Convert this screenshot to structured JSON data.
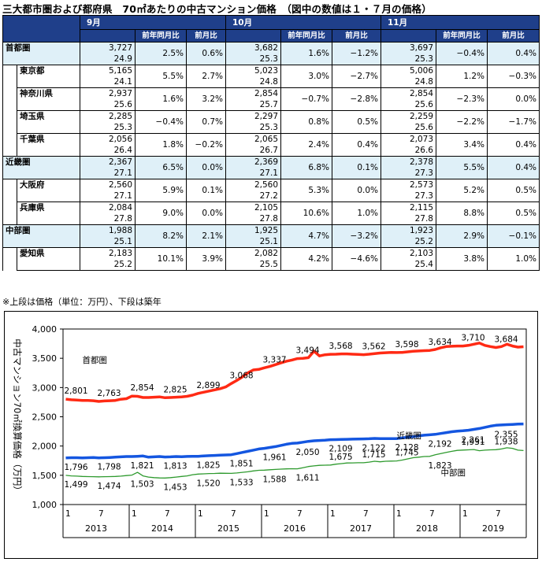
{
  "title": "三大都市圏および都府県　70㎡あたりの中古マンション価格　（図中の数値は１・７月の価格）",
  "table": {
    "months": [
      "9月",
      "10月",
      "11月"
    ],
    "subheaders": [
      "前年同月比",
      "前月比"
    ],
    "rows": [
      {
        "name": "首都圏",
        "type": "region",
        "cells": [
          [
            "3,727",
            "24.9",
            "2.5%",
            "0.6%"
          ],
          [
            "3,682",
            "25.3",
            "1.6%",
            "−1.2%"
          ],
          [
            "3,697",
            "25.3",
            "−0.4%",
            "0.4%"
          ]
        ]
      },
      {
        "name": "東京都",
        "type": "pref",
        "cells": [
          [
            "5,165",
            "24.1",
            "5.5%",
            "2.7%"
          ],
          [
            "5,023",
            "24.8",
            "3.0%",
            "−2.7%"
          ],
          [
            "5,006",
            "24.8",
            "1.2%",
            "−0.3%"
          ]
        ]
      },
      {
        "name": "神奈川県",
        "type": "pref",
        "cells": [
          [
            "2,937",
            "25.6",
            "1.6%",
            "3.2%"
          ],
          [
            "2,854",
            "25.7",
            "−0.7%",
            "−2.8%"
          ],
          [
            "2,854",
            "25.6",
            "−2.3%",
            "0.0%"
          ]
        ]
      },
      {
        "name": "埼玉県",
        "type": "pref",
        "cells": [
          [
            "2,285",
            "25.3",
            "−0.4%",
            "0.7%"
          ],
          [
            "2,297",
            "25.3",
            "0.8%",
            "0.5%"
          ],
          [
            "2,259",
            "25.6",
            "−2.2%",
            "−1.7%"
          ]
        ]
      },
      {
        "name": "千葉県",
        "type": "pref",
        "cells": [
          [
            "2,056",
            "26.4",
            "1.8%",
            "−0.2%"
          ],
          [
            "2,065",
            "26.7",
            "2.4%",
            "0.4%"
          ],
          [
            "2,073",
            "26.6",
            "3.4%",
            "0.4%"
          ]
        ]
      },
      {
        "name": "近畿圏",
        "type": "region",
        "cells": [
          [
            "2,367",
            "27.1",
            "6.5%",
            "0.0%"
          ],
          [
            "2,369",
            "27.1",
            "6.8%",
            "0.1%"
          ],
          [
            "2,378",
            "27.3",
            "5.5%",
            "0.4%"
          ]
        ]
      },
      {
        "name": "大阪府",
        "type": "pref",
        "cells": [
          [
            "2,560",
            "27.1",
            "5.9%",
            "0.1%"
          ],
          [
            "2,560",
            "27.2",
            "5.3%",
            "0.0%"
          ],
          [
            "2,573",
            "27.3",
            "5.2%",
            "0.5%"
          ]
        ]
      },
      {
        "name": "兵庫県",
        "type": "pref",
        "cells": [
          [
            "2,084",
            "27.8",
            "9.0%",
            "0.0%"
          ],
          [
            "2,105",
            "27.8",
            "10.6%",
            "1.0%"
          ],
          [
            "2,115",
            "27.8",
            "8.8%",
            "0.5%"
          ]
        ]
      },
      {
        "name": "中部圏",
        "type": "region",
        "cells": [
          [
            "1,988",
            "25.1",
            "8.2%",
            "2.1%"
          ],
          [
            "1,925",
            "25.1",
            "4.7%",
            "−3.2%"
          ],
          [
            "1,923",
            "25.2",
            "2.9%",
            "−0.1%"
          ]
        ]
      },
      {
        "name": "愛知県",
        "type": "pref",
        "cells": [
          [
            "2,183",
            "25.2",
            "10.1%",
            "3.9%"
          ],
          [
            "2,082",
            "25.5",
            "4.2%",
            "−4.6%"
          ],
          [
            "2,103",
            "25.4",
            "3.8%",
            "1.0%"
          ]
        ]
      }
    ]
  },
  "note": "※上段は価格（単位：万円）、下段は築年",
  "chart_data": {
    "type": "line",
    "ylabel": "中古マンション70㎡換算価格（万円）",
    "ylim": [
      1000,
      4000
    ],
    "yticks": [
      1000,
      1500,
      2000,
      2500,
      3000,
      3500,
      4000
    ],
    "x_month_ticks": [
      "1",
      "7",
      "1",
      "7",
      "1",
      "7",
      "1",
      "7",
      "1",
      "7",
      "1",
      "7",
      "1",
      "7"
    ],
    "x_years": [
      "2013",
      "2014",
      "2015",
      "2016",
      "2017",
      "2018",
      "2019"
    ],
    "colors": {
      "首都圏": "#ff2a14",
      "近畿圏": "#1456e0",
      "中部圏": "#2e9a2e"
    },
    "series": [
      {
        "name": "首都圏",
        "label_pos": [
          3,
          3420
        ],
        "width": 3.5,
        "values": [
          2801,
          2790,
          2785,
          2780,
          2778,
          2775,
          2763,
          2770,
          2775,
          2780,
          2800,
          2810,
          2854,
          2850,
          2830,
          2830,
          2835,
          2840,
          2825,
          2830,
          2835,
          2840,
          2850,
          2870,
          2899,
          2920,
          2940,
          2960,
          2980,
          3010,
          3068,
          3120,
          3180,
          3250,
          3300,
          3310,
          3337,
          3360,
          3390,
          3420,
          3450,
          3470,
          3494,
          3500,
          3510,
          3620,
          3540,
          3560,
          3568,
          3570,
          3575,
          3575,
          3570,
          3565,
          3562,
          3570,
          3580,
          3590,
          3595,
          3600,
          3598,
          3600,
          3610,
          3620,
          3625,
          3630,
          3634,
          3650,
          3680,
          3700,
          3705,
          3710,
          3710,
          3720,
          3740,
          3760,
          3720,
          3700,
          3684,
          3700,
          3740,
          3710,
          3690,
          3697
        ],
        "labels": [
          [
            0,
            2801,
            -1
          ],
          [
            6,
            2763,
            -1
          ],
          [
            12,
            2854,
            -1
          ],
          [
            18,
            2825,
            -1
          ],
          [
            24,
            2899,
            -1
          ],
          [
            30,
            3068,
            -1
          ],
          [
            36,
            3337,
            -1
          ],
          [
            42,
            3494,
            -1
          ],
          [
            48,
            3568,
            -1
          ],
          [
            54,
            3562,
            -1
          ],
          [
            60,
            3598,
            -1
          ],
          [
            66,
            3634,
            -1
          ],
          [
            72,
            3710,
            -1
          ],
          [
            78,
            3684,
            -1
          ]
        ]
      },
      {
        "name": "近畿圏",
        "label_pos": [
          60,
          2130
        ],
        "width": 3.5,
        "values": [
          1796,
          1800,
          1800,
          1798,
          1800,
          1805,
          1798,
          1800,
          1805,
          1810,
          1815,
          1820,
          1821,
          1825,
          1830,
          1810,
          1815,
          1820,
          1813,
          1815,
          1820,
          1818,
          1822,
          1824,
          1825,
          1830,
          1835,
          1840,
          1845,
          1848,
          1851,
          1870,
          1890,
          1910,
          1930,
          1950,
          1961,
          1975,
          1990,
          2010,
          2030,
          2045,
          2050,
          2065,
          2080,
          2090,
          2095,
          2100,
          2109,
          2110,
          2112,
          2115,
          2118,
          2120,
          2122,
          2125,
          2130,
          2128,
          2126,
          2128,
          2128,
          2140,
          2150,
          2160,
          2175,
          2185,
          2192,
          2200,
          2215,
          2230,
          2245,
          2255,
          2261,
          2270,
          2285,
          2300,
          2320,
          2340,
          2355,
          2360,
          2365,
          2370,
          2375,
          2378
        ],
        "labels": [
          [
            0,
            1796,
            1
          ],
          [
            6,
            1798,
            1
          ],
          [
            12,
            1821,
            1
          ],
          [
            18,
            1813,
            1
          ],
          [
            24,
            1825,
            1
          ],
          [
            30,
            1851,
            1
          ],
          [
            36,
            1961,
            1
          ],
          [
            42,
            2050,
            1
          ],
          [
            48,
            2109,
            1
          ],
          [
            54,
            2122,
            1
          ],
          [
            60,
            2128,
            1
          ],
          [
            66,
            2192,
            1
          ],
          [
            72,
            2261,
            1
          ],
          [
            78,
            2355,
            1
          ]
        ]
      },
      {
        "name": "中部圏",
        "label_pos": [
          68,
          1500
        ],
        "width": 1.3,
        "values": [
          1499,
          1490,
          1485,
          1480,
          1478,
          1476,
          1474,
          1476,
          1478,
          1480,
          1485,
          1495,
          1503,
          1550,
          1490,
          1470,
          1460,
          1455,
          1453,
          1460,
          1470,
          1480,
          1490,
          1510,
          1520,
          1525,
          1530,
          1532,
          1535,
          1534,
          1533,
          1540,
          1550,
          1560,
          1575,
          1585,
          1588,
          1595,
          1600,
          1605,
          1610,
          1612,
          1611,
          1630,
          1650,
          1660,
          1670,
          1672,
          1675,
          1690,
          1700,
          1710,
          1712,
          1714,
          1715,
          1725,
          1740,
          1730,
          1740,
          1742,
          1745,
          1760,
          1780,
          1800,
          1810,
          1820,
          1823,
          1850,
          1870,
          1890,
          1910,
          1925,
          1931,
          1935,
          1940,
          1920,
          1930,
          1935,
          1938,
          1950,
          1970,
          1960,
          1930,
          1923
        ],
        "labels": [
          [
            0,
            1499,
            1
          ],
          [
            6,
            1474,
            1
          ],
          [
            12,
            1503,
            1
          ],
          [
            18,
            1453,
            1
          ],
          [
            24,
            1520,
            1
          ],
          [
            30,
            1533,
            1
          ],
          [
            36,
            1588,
            1
          ],
          [
            42,
            1611,
            1
          ],
          [
            48,
            1675,
            -1
          ],
          [
            54,
            1715,
            -1
          ],
          [
            60,
            1745,
            -1
          ],
          [
            66,
            1823,
            1
          ],
          [
            72,
            1931,
            -1
          ],
          [
            78,
            1938,
            -1
          ]
        ]
      }
    ]
  }
}
